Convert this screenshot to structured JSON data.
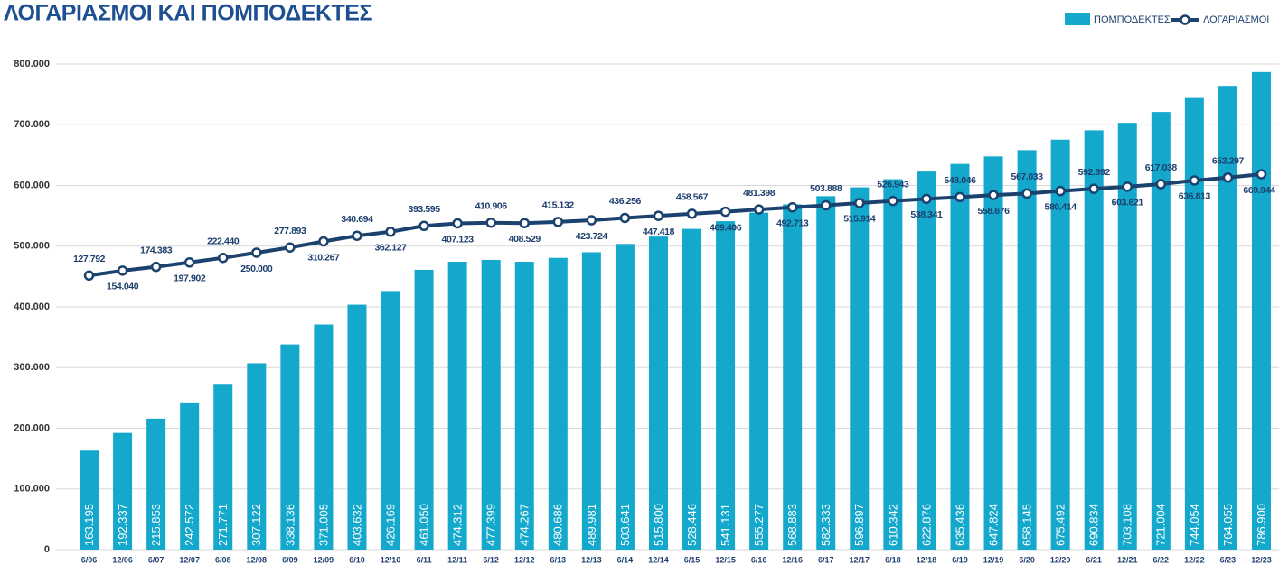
{
  "chart_data": {
    "type": "bar-line",
    "title": "ΛΟΓΑΡΙΑΣΜΟΙ ΚΑΙ ΠΟΜΠΟΔΕΚΤΕΣ",
    "legend": "top-right",
    "grid": true,
    "categories": [
      "6/06",
      "12/06",
      "6/07",
      "12/07",
      "6/08",
      "12/08",
      "6/09",
      "12/09",
      "6/10",
      "12/10",
      "6/11",
      "12/11",
      "6/12",
      "12/12",
      "6/13",
      "12/13",
      "6/14",
      "12/14",
      "6/15",
      "12/15",
      "6/16",
      "12/16",
      "6/17",
      "12/17",
      "6/18",
      "12/18",
      "6/19",
      "12/19",
      "6/20",
      "12/20",
      "6/21",
      "12/21",
      "6/22",
      "12/22",
      "6/23",
      "12/23"
    ],
    "ylim": [
      0,
      800000
    ],
    "yticks": [
      0,
      {
        "value": 100000,
        "label": "100.000"
      },
      {
        "value": 200000,
        "label": "200.000"
      },
      {
        "value": 300000,
        "label": "300.000"
      },
      {
        "value": 400000,
        "label": "400.000"
      },
      {
        "value": 500000,
        "label": "500.000"
      },
      {
        "value": 600000,
        "label": "600.000"
      },
      {
        "value": 700000,
        "label": "700.000"
      },
      {
        "value": 800000,
        "label": "800.000"
      }
    ],
    "y2lim": [
      -1340000,
      1260000
    ],
    "series": [
      {
        "name": "ΠΟΜΠΟΔΕΚΤΕΣ",
        "type": "bar",
        "color": "#13a8cc",
        "values": [
          163195,
          192337,
          215853,
          242572,
          271771,
          307122,
          338136,
          371005,
          403632,
          426169,
          461050,
          474312,
          477399,
          474267,
          480686,
          489981,
          503641,
          515800,
          528446,
          541131,
          555277,
          568883,
          582333,
          596897,
          610342,
          622876,
          635436,
          647824,
          658145,
          675492,
          690834,
          703108,
          721004,
          744054,
          764055,
          786900
        ],
        "value_labels": [
          "163.195",
          "192.337",
          "215.853",
          "242.572",
          "271.771",
          "307.122",
          "338.136",
          "371.005",
          "403.632",
          "426.169",
          "461.050",
          "474.312",
          "477.399",
          "474.267",
          "480.686",
          "489.981",
          "503.641",
          "515.800",
          "528.446",
          "541.131",
          "555.277",
          "568.883",
          "582.333",
          "596.897",
          "610.342",
          "622.876",
          "635.436",
          "647.824",
          "658.145",
          "675.492",
          "690.834",
          "703.108",
          "721.004",
          "744.054",
          "764.055",
          "786.900"
        ]
      },
      {
        "name": "ΛΟΓΑΡΙΑΣΜΟΙ",
        "type": "line",
        "axis": "y2",
        "color": "#1b426f",
        "values": [
          127792,
          154040,
          174383,
          197902,
          222440,
          250000,
          277893,
          310267,
          340694,
          362127,
          393595,
          407123,
          410906,
          408529,
          415132,
          423724,
          436256,
          447418,
          458567,
          469406,
          481398,
          492713,
          503888,
          515914,
          526943,
          538341,
          548046,
          558676,
          567033,
          580414,
          592392,
          603621,
          617038,
          636813,
          652297,
          669944
        ],
        "value_labels": [
          "127.792",
          "154.040",
          "174.383",
          "197.902",
          "222.440",
          "250.000",
          "277.893",
          "310.267",
          "340.694",
          "362.127",
          "393.595",
          "407.123",
          "410.906",
          "408.529",
          "415.132",
          "423.724",
          "436.256",
          "447.418",
          "458.567",
          "469.406",
          "481.398",
          "492.713",
          "503.888",
          "515.914",
          "526.943",
          "538.341",
          "548.046",
          "558.676",
          "567.033",
          "580.414",
          "592.392",
          "603.621",
          "617.038",
          "636.813",
          "652.297",
          "669.944"
        ]
      }
    ]
  }
}
